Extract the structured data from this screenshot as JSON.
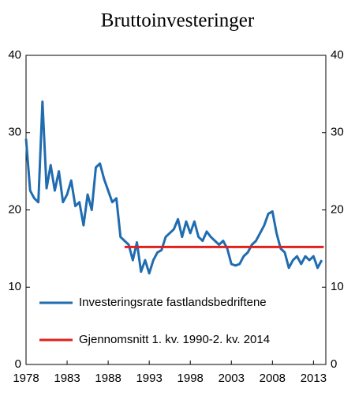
{
  "chart_data": {
    "type": "line",
    "title": "Bruttoinvesteringer",
    "xlim": [
      1978,
      2014.5
    ],
    "xticks": [
      1978,
      1983,
      1988,
      1993,
      1998,
      2003,
      2008,
      2013
    ],
    "ylim": [
      0,
      40
    ],
    "yticks": [
      0,
      10,
      20,
      30,
      40
    ],
    "y2lim": [
      0,
      40
    ],
    "y2ticks": [
      0,
      10,
      20,
      30,
      40
    ],
    "legend": "lower left",
    "series": [
      {
        "name": "Investeringsrate fastlandsbedriftene",
        "color": "#1f6cb0",
        "x": [
          1978,
          1978.5,
          1979,
          1979.5,
          1980,
          1980.5,
          1981,
          1981.5,
          1982,
          1982.5,
          1983,
          1983.5,
          1984,
          1984.5,
          1985,
          1985.5,
          1986,
          1986.5,
          1987,
          1987.5,
          1988,
          1988.5,
          1989,
          1989.5,
          1990,
          1990.5,
          1991,
          1991.5,
          1992,
          1992.5,
          1993,
          1993.5,
          1994,
          1994.5,
          1995,
          1995.5,
          1996,
          1996.5,
          1997,
          1997.5,
          1998,
          1998.5,
          1999,
          1999.5,
          2000,
          2000.5,
          2001,
          2001.5,
          2002,
          2002.5,
          2003,
          2003.5,
          2004,
          2004.5,
          2005,
          2005.5,
          2006,
          2006.5,
          2007,
          2007.5,
          2008,
          2008.5,
          2009,
          2009.5,
          2010,
          2010.5,
          2011,
          2011.5,
          2012,
          2012.5,
          2013,
          2013.5,
          2014
        ],
        "values": [
          29.2,
          22.5,
          21.5,
          21.0,
          34.0,
          22.8,
          25.8,
          22.5,
          25.0,
          21.0,
          22.0,
          23.8,
          20.5,
          21.0,
          18.0,
          22.0,
          20.0,
          25.5,
          26.0,
          24.0,
          22.5,
          21.0,
          21.5,
          16.5,
          16.0,
          15.5,
          13.5,
          15.8,
          12.0,
          13.5,
          11.8,
          13.5,
          14.5,
          14.8,
          16.5,
          17.0,
          17.5,
          18.8,
          16.5,
          18.5,
          17.0,
          18.5,
          16.5,
          16.0,
          17.2,
          16.5,
          16.0,
          15.5,
          16.0,
          15.0,
          13.0,
          12.8,
          13.0,
          14.0,
          14.5,
          15.5,
          16.0,
          17.0,
          18.0,
          19.5,
          19.8,
          17.0,
          15.0,
          14.5,
          12.5,
          13.5,
          14.0,
          13.0,
          14.0,
          13.5,
          14.0,
          12.5,
          13.5
        ]
      },
      {
        "name": "Gjennomsnitt 1. kv. 1990-2. kv. 2014",
        "color": "#e0201b",
        "x": [
          1990,
          2014.25
        ],
        "values": [
          15.2,
          15.2
        ]
      }
    ]
  }
}
